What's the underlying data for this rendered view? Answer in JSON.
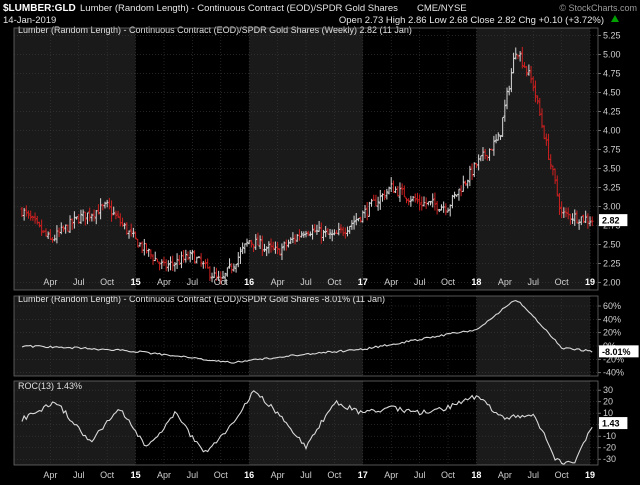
{
  "header": {
    "symbol": "$LUMBER:GLD",
    "description": "Lumber (Random Length) - Continuous Contract (EOD)/SPDR Gold Shares",
    "exchange": "CME/NYSE",
    "date": "14-Jan-2019",
    "ohlc": "Open 2.73  High 2.86  Low 2.68  Close 2.82  Chg +0.10 (+3.72%)",
    "credit": "© StockCharts.com"
  },
  "chart_data": [
    {
      "type": "bar",
      "legend": "Lumber (Random Length) - Continuous Contract (EOD)/SPDR Gold Shares (Weekly) 2.82 (11 Jan)",
      "ylim": [
        1.9,
        5.35
      ],
      "yticks": [
        "2.00",
        "2.25",
        "2.50",
        "2.75",
        "3.00",
        "3.25",
        "3.50",
        "3.75",
        "4.00",
        "4.25",
        "4.50",
        "4.75",
        "5.00",
        "5.25"
      ],
      "last_value": "2.82",
      "x": [
        2014.0,
        2014.25,
        2014.5,
        2014.75,
        2015.0,
        2015.25,
        2015.5,
        2015.75,
        2016.0,
        2016.25,
        2016.5,
        2016.75,
        2017.0,
        2017.25,
        2017.5,
        2017.75,
        2018.0,
        2018.2,
        2018.35,
        2018.5,
        2018.75,
        2019.03
      ],
      "close": [
        2.95,
        2.55,
        2.85,
        3.0,
        2.55,
        2.2,
        2.35,
        2.0,
        2.55,
        2.4,
        2.7,
        2.6,
        2.9,
        3.25,
        3.05,
        3.0,
        3.55,
        3.9,
        5.1,
        4.6,
        2.9,
        2.82
      ]
    },
    {
      "type": "line",
      "legend": "Lumber (Random Length) - Continuous Contract (EOD)/SPDR Gold Shares -8.01% (11 Jan)",
      "ylim": [
        -45,
        75
      ],
      "yticks": [
        "-40%",
        "-20%",
        "0%",
        "20%",
        "40%",
        "60%"
      ],
      "last_value": "-8.01%",
      "x": [
        2014.0,
        2014.5,
        2015.0,
        2015.5,
        2015.85,
        2016.5,
        2017.0,
        2017.5,
        2018.0,
        2018.35,
        2018.5,
        2018.75,
        2019.03
      ],
      "values": [
        0,
        -3,
        -8,
        -18,
        -25,
        -12,
        -5,
        10,
        25,
        70,
        45,
        -3,
        -8.01
      ]
    },
    {
      "type": "line",
      "legend": "ROC(13) 1.43%",
      "ylim": [
        -35,
        38
      ],
      "yticks": [
        "-30",
        "-20",
        "-10",
        "0",
        "10",
        "20",
        "30"
      ],
      "last_value": "1.43",
      "x": [
        2014.0,
        2014.3,
        2014.6,
        2014.85,
        2015.1,
        2015.35,
        2015.6,
        2015.85,
        2016.05,
        2016.3,
        2016.5,
        2016.75,
        2017.0,
        2017.25,
        2017.5,
        2017.75,
        2018.0,
        2018.25,
        2018.5,
        2018.7,
        2018.85,
        2019.03
      ],
      "values": [
        5,
        20,
        -15,
        15,
        -20,
        10,
        -25,
        0,
        30,
        5,
        -20,
        20,
        10,
        15,
        10,
        15,
        25,
        5,
        10,
        -30,
        -35,
        1.43
      ]
    }
  ],
  "xaxis": {
    "labels": [
      {
        "label": "Apr",
        "t": 2014.25
      },
      {
        "label": "Jul",
        "t": 2014.5
      },
      {
        "label": "Oct",
        "t": 2014.75
      },
      {
        "label": "15",
        "t": 2015.0
      },
      {
        "label": "Apr",
        "t": 2015.25
      },
      {
        "label": "Jul",
        "t": 2015.5
      },
      {
        "label": "Oct",
        "t": 2015.75
      },
      {
        "label": "16",
        "t": 2016.0
      },
      {
        "label": "Apr",
        "t": 2016.25
      },
      {
        "label": "Jul",
        "t": 2016.5
      },
      {
        "label": "Oct",
        "t": 2016.75
      },
      {
        "label": "17",
        "t": 2017.0
      },
      {
        "label": "Apr",
        "t": 2017.25
      },
      {
        "label": "Jul",
        "t": 2017.5
      },
      {
        "label": "Oct",
        "t": 2017.75
      },
      {
        "label": "18",
        "t": 2018.0
      },
      {
        "label": "Apr",
        "t": 2018.25
      },
      {
        "label": "Jul",
        "t": 2018.5
      },
      {
        "label": "Oct",
        "t": 2018.75
      },
      {
        "label": "19",
        "t": 2019.0
      }
    ]
  },
  "colors": {
    "background": "#000000",
    "band": "#1a1a1a",
    "grid": "#3a3a3a",
    "text": "#cfcfcf",
    "up": "#d8d8d8",
    "down": "#cc2020",
    "line": "#d8d8d8",
    "accent": "#00a000"
  }
}
